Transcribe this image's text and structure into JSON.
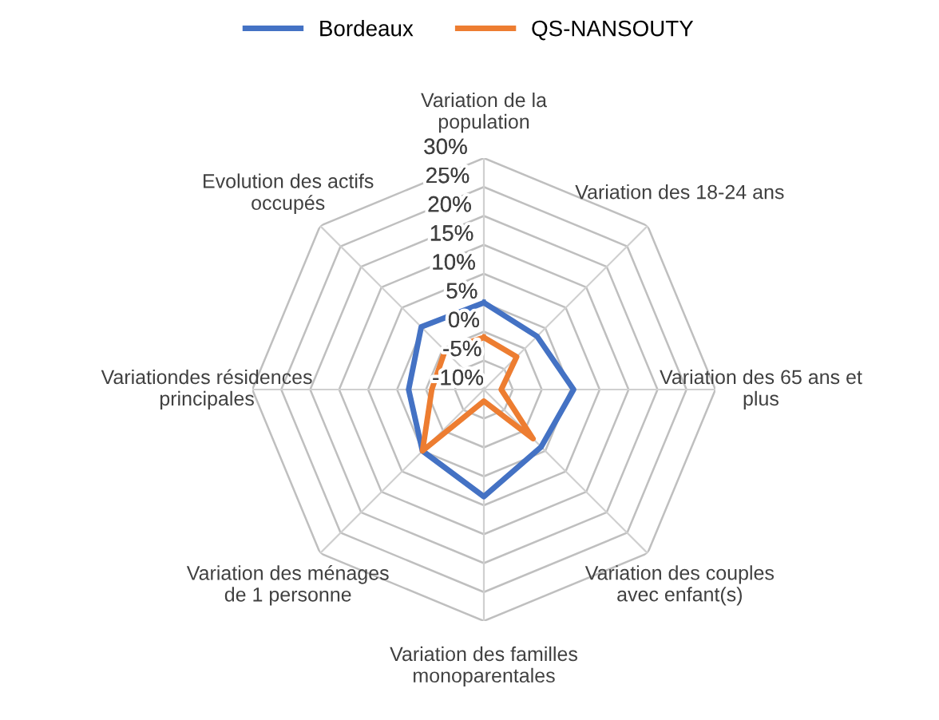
{
  "chart_data": {
    "type": "radar",
    "categories": [
      "Variation de la\npopulation",
      "Variation des 18-24 ans",
      "Variation des 65 ans et\nplus",
      "Variation des couples\navec enfant(s)",
      "Variation des familles\nmonoparentales",
      "Variation des ménages\nde 1 personne",
      "Variationdes résidences\nprincipales",
      "Evolution des actifs\noccupés"
    ],
    "series": [
      {
        "name": "Bordeaux",
        "color": "#4472c4",
        "values": [
          5,
          3,
          5.5,
          4,
          8.5,
          5,
          3,
          5.3
        ]
      },
      {
        "name": "QS-NANSOUTY",
        "color": "#ed7d31",
        "values": [
          -1,
          -2,
          -7,
          2,
          -8,
          5,
          -1,
          -0.5
        ]
      }
    ],
    "ylim": [
      -10,
      30
    ],
    "yticks": [
      {
        "value": -10,
        "label": "-10%"
      },
      {
        "value": -5,
        "label": "-5%"
      },
      {
        "value": 0,
        "label": "0%"
      },
      {
        "value": 5,
        "label": "5%"
      },
      {
        "value": 10,
        "label": "10%"
      },
      {
        "value": 15,
        "label": "15%"
      },
      {
        "value": 20,
        "label": "20%"
      },
      {
        "value": 25,
        "label": "25%"
      },
      {
        "value": 30,
        "label": "30%"
      }
    ],
    "grid": true,
    "legend": "top"
  }
}
